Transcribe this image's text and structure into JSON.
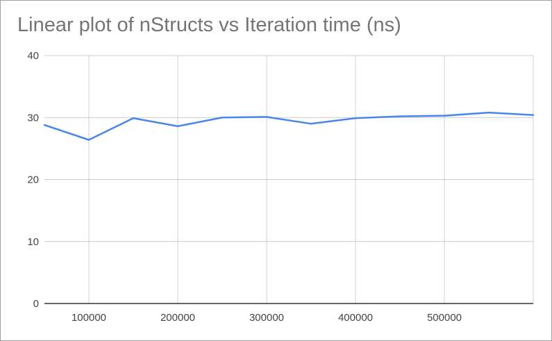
{
  "chart_data": {
    "type": "line",
    "title": "Linear plot of nStructs vs Iteration time (ns)",
    "xlabel": "",
    "ylabel": "",
    "xlim": [
      50000,
      600000
    ],
    "ylim": [
      0,
      40
    ],
    "x_ticks": [
      100000,
      200000,
      300000,
      400000,
      500000
    ],
    "x_tick_labels": [
      "100000",
      "200000",
      "300000",
      "400000",
      "500000"
    ],
    "y_ticks": [
      0,
      10,
      20,
      30,
      40
    ],
    "y_tick_labels": [
      "0",
      "10",
      "20",
      "30",
      "40"
    ],
    "grid": true,
    "legend": "none",
    "series": [
      {
        "color": "#4a86e8",
        "x": [
          50000,
          100000,
          150000,
          200000,
          250000,
          300000,
          350000,
          400000,
          450000,
          500000,
          550000,
          600000
        ],
        "y": [
          28.8,
          26.4,
          29.9,
          28.6,
          30.0,
          30.1,
          29.0,
          29.9,
          30.2,
          30.3,
          30.8,
          30.4
        ]
      }
    ]
  }
}
